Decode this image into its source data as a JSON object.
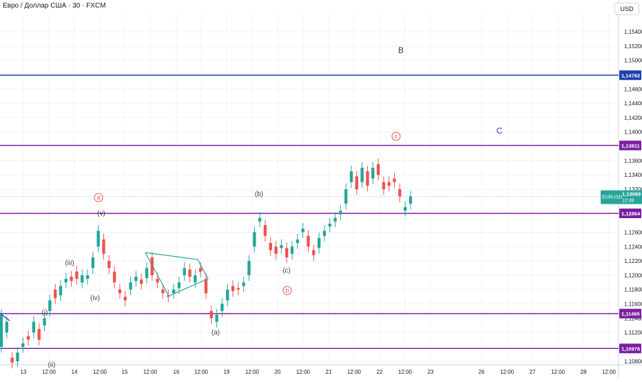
{
  "header": {
    "title": "Евро / Доллар США · 30 · FXCM",
    "currency": "USD"
  },
  "chart_data": {
    "type": "candlestick",
    "symbol": "EURUSD",
    "ylim": [
      1.1075,
      1.1565
    ],
    "yticks": [
      "1,15400",
      "1,15200",
      "1,15000",
      "1,14600",
      "1,14400",
      "1,14200",
      "1,14000",
      "1,13600",
      "1,13400",
      "1,13200",
      "1,12600",
      "1,12400",
      "1,12200",
      "1,12000",
      "1,11800",
      "1,11600",
      "1,11400",
      "1,11200",
      "1,10800"
    ],
    "ytick_values": [
      1.154,
      1.152,
      1.15,
      1.146,
      1.144,
      1.142,
      1.14,
      1.136,
      1.134,
      1.132,
      1.126,
      1.124,
      1.122,
      1.12,
      1.118,
      1.116,
      1.114,
      1.112,
      1.108
    ],
    "xticks": [
      "13",
      "12:00",
      "14",
      "12:00",
      "15",
      "12:00",
      "16",
      "12:00",
      "19",
      "12:00",
      "20",
      "12:00",
      "21",
      "12:00",
      "22",
      "12:00",
      "23",
      "26",
      "12:00",
      "27",
      "12:00",
      "28",
      "12:00"
    ],
    "price": {
      "symbol": "EURUSD",
      "value": "1,13099",
      "countdown": "12:39",
      "raw": 1.13099
    },
    "levels": [
      {
        "label": "1,14792",
        "value": 1.14792,
        "color": "#1e40af"
      },
      {
        "label": "1,13811",
        "value": 1.13811,
        "color": "#7b1fa2"
      },
      {
        "label": "1,12864",
        "value": 1.12864,
        "color": "#7b1fa2"
      },
      {
        "label": "1,11465",
        "value": 1.11465,
        "color": "#7b1fa2"
      },
      {
        "label": "1,10978",
        "value": 1.10978,
        "color": "#7b1fa2"
      }
    ],
    "wave_labels": [
      {
        "text": "B",
        "style": "blue"
      },
      {
        "text": "C",
        "style": "blue"
      },
      {
        "text": "c",
        "style": "red-circle"
      },
      {
        "text": "a",
        "style": "red-circle"
      },
      {
        "text": "b",
        "style": "red-circle"
      },
      {
        "text": "(b)",
        "style": "gray"
      },
      {
        "text": "(v)",
        "style": "gray"
      },
      {
        "text": "(iii)",
        "style": "gray"
      },
      {
        "text": "(iv)",
        "style": "gray"
      },
      {
        "text": "(i)",
        "style": "gray"
      },
      {
        "text": "(ii)",
        "style": "gray"
      },
      {
        "text": "(c)",
        "style": "gray"
      },
      {
        "text": "(a)",
        "style": "gray"
      }
    ],
    "series_path": [
      [
        1.11,
        1.1145
      ],
      [
        1.112,
        1.1135
      ],
      [
        1.1085,
        1.1078
      ],
      [
        1.108,
        1.1092
      ],
      [
        1.11,
        1.1105
      ],
      [
        1.1115,
        1.111
      ],
      [
        1.112,
        1.1135
      ],
      [
        1.1125,
        1.111
      ],
      [
        1.113,
        1.114
      ],
      [
        1.115,
        1.1165
      ],
      [
        1.118,
        1.1168
      ],
      [
        1.1172,
        1.1185
      ],
      [
        1.119,
        1.1195
      ],
      [
        1.1198,
        1.1192
      ],
      [
        1.1205,
        1.1195
      ],
      [
        1.119,
        1.12
      ],
      [
        1.1195,
        1.12
      ],
      [
        1.121,
        1.1225
      ],
      [
        1.124,
        1.1262
      ],
      [
        1.125,
        1.123
      ],
      [
        1.122,
        1.121
      ],
      [
        1.1205,
        1.119
      ],
      [
        1.118,
        1.1175
      ],
      [
        1.117,
        1.1165
      ],
      [
        1.118,
        1.119
      ],
      [
        1.1192,
        1.1198
      ],
      [
        1.1194,
        1.1188
      ],
      [
        1.1196,
        1.121
      ],
      [
        1.1225,
        1.12
      ],
      [
        1.1195,
        1.119
      ],
      [
        1.118,
        1.1175
      ],
      [
        1.1172,
        1.117
      ],
      [
        1.1175,
        1.118
      ],
      [
        1.1182,
        1.119
      ],
      [
        1.12,
        1.121
      ],
      [
        1.1208,
        1.1198
      ],
      [
        1.119,
        1.12
      ],
      [
        1.121,
        1.1205
      ],
      [
        1.1195,
        1.1175
      ],
      [
        1.115,
        1.114
      ],
      [
        1.1135,
        1.1145
      ],
      [
        1.115,
        1.116
      ],
      [
        1.1165,
        1.118
      ],
      [
        1.1185,
        1.1178
      ],
      [
        1.1182,
        1.118
      ],
      [
        1.1185,
        1.119
      ],
      [
        1.12,
        1.122
      ],
      [
        1.124,
        1.126
      ],
      [
        1.1275,
        1.128
      ],
      [
        1.127,
        1.1255
      ],
      [
        1.1245,
        1.1235
      ],
      [
        1.124,
        1.123
      ],
      [
        1.1238,
        1.1242
      ],
      [
        1.1238,
        1.1225
      ],
      [
        1.123,
        1.124
      ],
      [
        1.1245,
        1.125
      ],
      [
        1.126,
        1.1265
      ],
      [
        1.1255,
        1.124
      ],
      [
        1.1235,
        1.1228
      ],
      [
        1.1238,
        1.1252
      ],
      [
        1.1255,
        1.1262
      ],
      [
        1.1268,
        1.1272
      ],
      [
        1.1275,
        1.128
      ],
      [
        1.1285,
        1.129
      ],
      [
        1.13,
        1.132
      ],
      [
        1.133,
        1.1345
      ],
      [
        1.1338,
        1.132
      ],
      [
        1.133,
        1.135
      ],
      [
        1.1345,
        1.1325
      ],
      [
        1.1335,
        1.135
      ],
      [
        1.1355,
        1.134
      ],
      [
        1.133,
        1.132
      ],
      [
        1.133,
        1.1325
      ],
      [
        1.1335,
        1.133
      ],
      [
        1.132,
        1.131
      ],
      [
        1.129,
        1.1295
      ],
      [
        1.13,
        1.131
      ]
    ]
  }
}
